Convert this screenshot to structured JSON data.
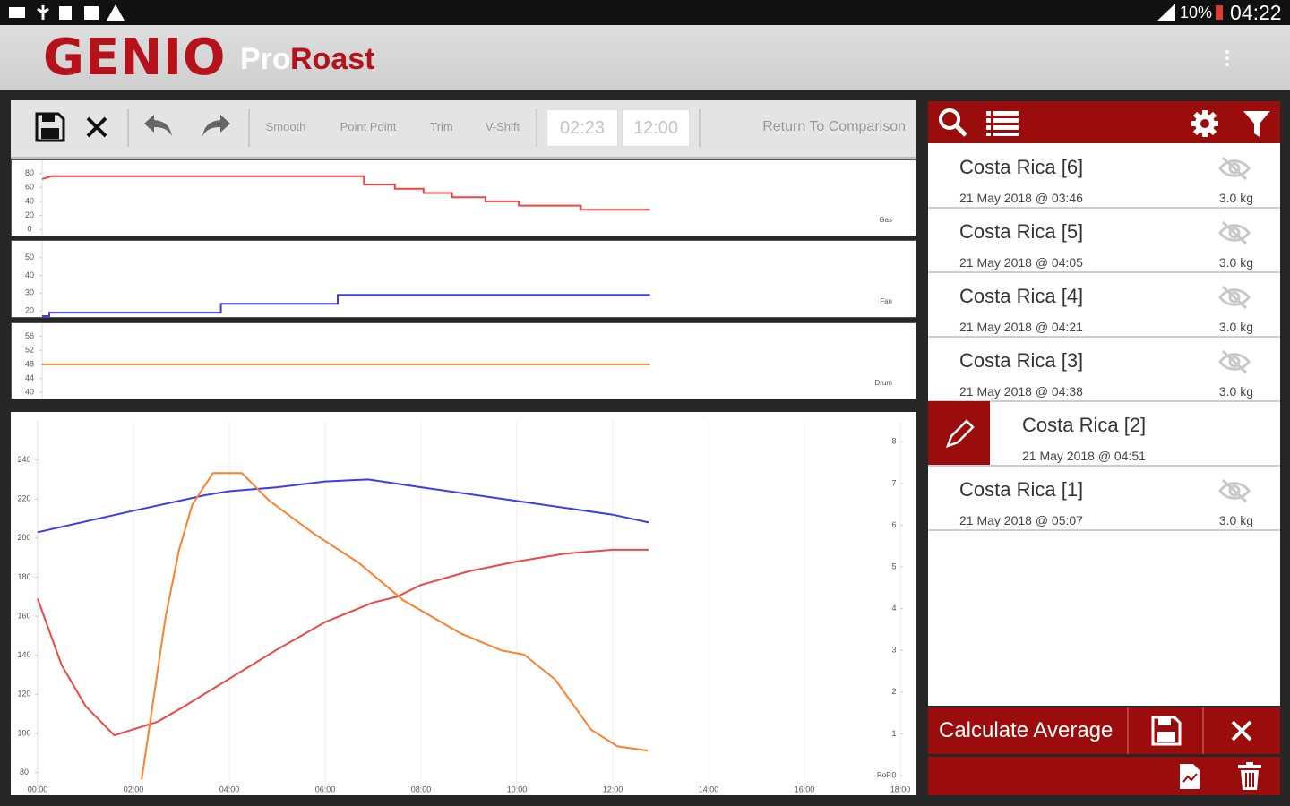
{
  "status_bar": {
    "battery": "10%",
    "time": "04:22"
  },
  "app_bar": {
    "logo": "GENIO",
    "product": [
      "Pro",
      "Roast"
    ]
  },
  "toolbar": {
    "tools": [
      "Smooth",
      "Point Point",
      "Trim",
      "V-Shift"
    ],
    "start": "02:23",
    "end": "12:00",
    "return_button": "Return To Comparison"
  },
  "chart_data": [
    {
      "type": "line",
      "label": "Gas",
      "xlim": [
        0,
        18
      ],
      "ylim": [
        -10,
        100
      ],
      "yticks": [
        0,
        20,
        40,
        60,
        80
      ],
      "series": [
        {
          "color": "#ef4444",
          "x": [
            0,
            0.2,
            6.75,
            6.75,
            7.4,
            7.4,
            8.0,
            8.0,
            8.6,
            8.6,
            9.3,
            9.3,
            10.0,
            10.0,
            11.3,
            11.3,
            12.75
          ],
          "values": [
            72,
            76,
            76,
            64,
            64,
            58,
            58,
            52,
            52,
            46,
            46,
            40,
            40,
            34,
            34,
            28,
            28
          ]
        }
      ]
    },
    {
      "type": "line",
      "label": "Fan",
      "xlim": [
        0,
        18
      ],
      "ylim": [
        16,
        60
      ],
      "yticks": [
        20,
        30,
        40,
        50
      ],
      "series": [
        {
          "color": "#3b3bf0",
          "x": [
            0,
            0.15,
            0.15,
            3.75,
            3.75,
            6.2,
            6.2,
            12.75
          ],
          "values": [
            17,
            17,
            19,
            19,
            24,
            24,
            29,
            29
          ]
        }
      ]
    },
    {
      "type": "line",
      "label": "Drum",
      "xlim": [
        0,
        18
      ],
      "ylim": [
        38,
        60
      ],
      "yticks": [
        40,
        44,
        48,
        52,
        56
      ],
      "series": [
        {
          "color": "#ff7f2a",
          "x": [
            0,
            12.75
          ],
          "values": [
            48,
            48
          ]
        }
      ]
    },
    {
      "type": "line",
      "xlim": [
        0,
        18
      ],
      "ylim": [
        72,
        260
      ],
      "y2lim": [
        -0.3,
        8.5
      ],
      "y2label": "RoR",
      "xticks": [
        {
          "value": 0,
          "label": "00:00"
        },
        {
          "value": 2,
          "label": "02:00"
        },
        {
          "value": 4,
          "label": "04:00"
        },
        {
          "value": 6,
          "label": "06:00"
        },
        {
          "value": 8,
          "label": "08:00"
        },
        {
          "value": 10,
          "label": "10:00"
        },
        {
          "value": 12,
          "label": "12:00"
        },
        {
          "value": 14,
          "label": "14:00"
        },
        {
          "value": 16,
          "label": "16:00"
        },
        {
          "value": 18,
          "label": "18:00"
        }
      ],
      "yticks": [
        80,
        100,
        120,
        140,
        160,
        180,
        200,
        220,
        240
      ],
      "y2ticks": [
        0,
        1,
        2,
        3,
        4,
        5,
        6,
        7,
        8
      ],
      "series": [
        {
          "color": "#3b3bf0",
          "x": [
            0,
            2,
            3.5,
            4,
            5,
            6,
            6.9,
            8,
            10,
            12,
            12.75
          ],
          "values": [
            203,
            214,
            222,
            224,
            226,
            229,
            230,
            226,
            219,
            212,
            208
          ]
        },
        {
          "color": "#f04646",
          "x": [
            0,
            0.5,
            1,
            1.6,
            2.5,
            3,
            4,
            5,
            6,
            7,
            7.5,
            8,
            9,
            10,
            11,
            12,
            12.75
          ],
          "values": [
            169,
            135,
            114,
            99,
            106,
            113,
            128,
            143,
            157,
            167,
            170,
            176,
            183,
            188,
            192,
            194,
            194
          ]
        },
        {
          "color": "#ff7f2a",
          "axis": "y2",
          "x": [
            2.17,
            2.67,
            2.95,
            3.23,
            3.66,
            4.26,
            4.82,
            5.76,
            6.7,
            7.63,
            8.84,
            9.68,
            10.15,
            10.8,
            11.55,
            12.1,
            12.73
          ],
          "values": [
            -0.1,
            3.8,
            5.4,
            6.5,
            7.25,
            7.25,
            6.6,
            5.8,
            5.1,
            4.2,
            3.4,
            3.0,
            2.9,
            2.3,
            1.1,
            0.7,
            0.6
          ]
        }
      ]
    }
  ],
  "roast_list": {
    "items": [
      {
        "name": "Costa Rica [6]",
        "date": "21 May 2018 @ 03:46",
        "weight": "3.0 kg"
      },
      {
        "name": "Costa Rica [5]",
        "date": "21 May 2018 @ 04:05",
        "weight": "3.0 kg"
      },
      {
        "name": "Costa Rica [4]",
        "date": "21 May 2018 @ 04:21",
        "weight": "3.0 kg"
      },
      {
        "name": "Costa Rica [3]",
        "date": "21 May 2018 @ 04:38",
        "weight": "3.0 kg"
      },
      {
        "name": "Costa Rica [2]",
        "date": "21 May 2018 @ 04:51",
        "selected": true
      },
      {
        "name": "Costa Rica [1]",
        "date": "21 May 2018 @ 05:07",
        "weight": "3.0 kg"
      }
    ]
  },
  "footer": {
    "action": "Calculate Average"
  }
}
